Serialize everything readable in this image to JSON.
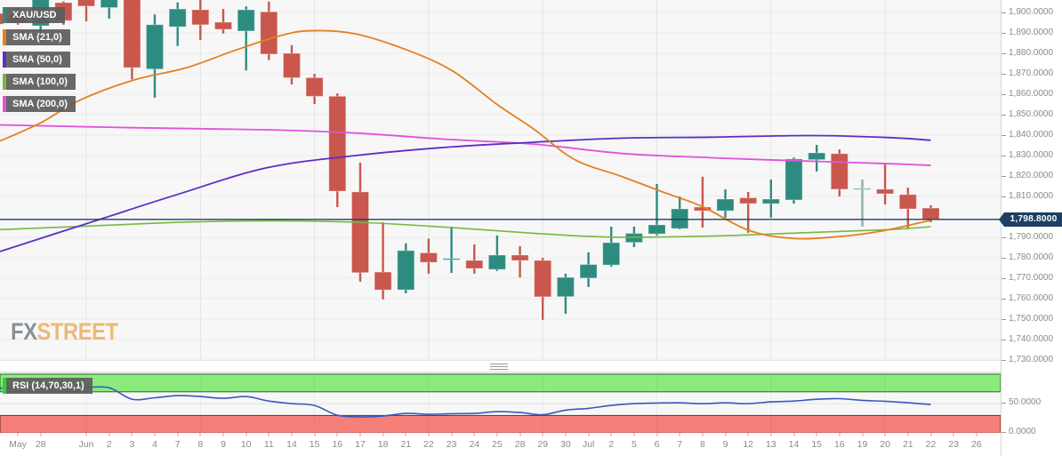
{
  "logo": {
    "fx": "FX",
    "street": "STREET"
  },
  "legend": {
    "items": [
      {
        "label": "XAU/USD",
        "color": "#2d8c7f"
      },
      {
        "label": "SMA (21,0)",
        "color": "#e5801f"
      },
      {
        "label": "SMA (50,0)",
        "color": "#5f2dc8"
      },
      {
        "label": "SMA (100,0)",
        "color": "#76b83f"
      },
      {
        "label": "SMA (200,0)",
        "color": "#e153d9"
      }
    ],
    "rsi": {
      "label": "RSI (14,70,30,1)",
      "color": "#2fd32f"
    }
  },
  "price_axis": {
    "ticks": [
      {
        "v": 1900,
        "text": "1,900.0000"
      },
      {
        "v": 1890,
        "text": "1,890.0000"
      },
      {
        "v": 1880,
        "text": "1,880.0000"
      },
      {
        "v": 1870,
        "text": "1,870.0000"
      },
      {
        "v": 1860,
        "text": "1,860.0000"
      },
      {
        "v": 1850,
        "text": "1,850.0000"
      },
      {
        "v": 1840,
        "text": "1,840.0000"
      },
      {
        "v": 1830,
        "text": "1,830.0000"
      },
      {
        "v": 1820,
        "text": "1,820.0000"
      },
      {
        "v": 1810,
        "text": "1,810.0000"
      },
      {
        "v": 1790,
        "text": "1,790.0000"
      },
      {
        "v": 1780,
        "text": "1,780.0000"
      },
      {
        "v": 1770,
        "text": "1,770.0000"
      },
      {
        "v": 1760,
        "text": "1,760.0000"
      },
      {
        "v": 1750,
        "text": "1,750.0000"
      },
      {
        "v": 1740,
        "text": "1,740.0000"
      },
      {
        "v": 1730,
        "text": "1,730.0000"
      }
    ],
    "current": {
      "value": 1798.8,
      "text": "1,798.8000"
    }
  },
  "rsi_axis": {
    "ticks": [
      {
        "v": 50,
        "text": "50.0000"
      },
      {
        "v": 0,
        "text": "0.0000"
      }
    ]
  },
  "chart_data": {
    "type": "candlestick",
    "symbol": "XAU/USD",
    "colors": {
      "up": "#2d8c7f",
      "down": "#c9574d",
      "pale_doji": "#8fb0a8",
      "current_price_line": "#1c3f63",
      "grid": "#ebebeb",
      "vgrid": "#e5e5e5",
      "rsi_line": "#3a57c0",
      "overbought_fill": "#8aeb7c",
      "oversold_fill": "#f58079"
    },
    "price_axis_range": {
      "top": 1906.1,
      "bottom": 1729.5,
      "tick_step": 10
    },
    "current_price": 1798.8,
    "candles": [
      {
        "t": "May 26",
        "label": "",
        "o": 1899.5,
        "h": 1900.5,
        "l": 1893.5,
        "c": 1894.3
      },
      {
        "t": "May 27",
        "label": "May",
        "o": 1899.0,
        "h": 1902.0,
        "l": 1894.0,
        "c": 1895.0
      },
      {
        "t": "May 28",
        "label": "28",
        "o": 1893.5,
        "h": 1908.0,
        "l": 1885.7,
        "c": 1906.5
      },
      {
        "t": "May 31",
        "label": "",
        "o": 1904.8,
        "h": 1905.5,
        "l": 1894.0,
        "c": 1896.0
      },
      {
        "t": "Jun 1",
        "label": "Jun",
        "o": 1907.0,
        "h": 1908.0,
        "l": 1895.7,
        "c": 1903.1
      },
      {
        "t": "Jun 2",
        "label": "2",
        "o": 1902.4,
        "h": 1908.0,
        "l": 1897.0,
        "c": 1907.0
      },
      {
        "t": "Jun 3",
        "label": "3",
        "o": 1908.0,
        "h": 1909.0,
        "l": 1867.2,
        "c": 1873.0
      },
      {
        "t": "Jun 4",
        "label": "4",
        "o": 1872.3,
        "h": 1899.0,
        "l": 1858.3,
        "c": 1894.0
      },
      {
        "t": "Jun 7",
        "label": "7",
        "o": 1893.0,
        "h": 1904.9,
        "l": 1883.6,
        "c": 1901.7
      },
      {
        "t": "Jun 8",
        "label": "8",
        "o": 1901.3,
        "h": 1906.1,
        "l": 1886.5,
        "c": 1894.0
      },
      {
        "t": "Jun 9",
        "label": "9",
        "o": 1895.2,
        "h": 1901.7,
        "l": 1889.7,
        "c": 1891.7
      },
      {
        "t": "Jun 10",
        "label": "10",
        "o": 1890.9,
        "h": 1903.0,
        "l": 1871.6,
        "c": 1901.3
      },
      {
        "t": "Jun 11",
        "label": "11",
        "o": 1900.3,
        "h": 1905.3,
        "l": 1876.7,
        "c": 1879.6
      },
      {
        "t": "Jun 14",
        "label": "14",
        "o": 1880.0,
        "h": 1884.0,
        "l": 1864.8,
        "c": 1868.1
      },
      {
        "t": "Jun 15",
        "label": "15",
        "o": 1868.1,
        "h": 1870.0,
        "l": 1855.2,
        "c": 1859.0
      },
      {
        "t": "Jun 16",
        "label": "16",
        "o": 1859.0,
        "h": 1860.4,
        "l": 1804.8,
        "c": 1812.6
      },
      {
        "t": "Jun 17",
        "label": "17",
        "o": 1812.2,
        "h": 1826.5,
        "l": 1768.3,
        "c": 1772.7
      },
      {
        "t": "Jun 18",
        "label": "18",
        "o": 1773.0,
        "h": 1797.4,
        "l": 1759.7,
        "c": 1764.3
      },
      {
        "t": "Jun 21",
        "label": "21",
        "o": 1764.3,
        "h": 1787.1,
        "l": 1762.6,
        "c": 1783.5
      },
      {
        "t": "Jun 22",
        "label": "22",
        "o": 1782.4,
        "h": 1789.4,
        "l": 1772.2,
        "c": 1777.8
      },
      {
        "t": "Jun 23",
        "label": "23",
        "o": 1779.0,
        "h": 1795.2,
        "l": 1772.6,
        "c": 1779.6
      },
      {
        "t": "Jun 24",
        "label": "24",
        "o": 1778.7,
        "h": 1786.5,
        "l": 1772.2,
        "c": 1774.8
      },
      {
        "t": "Jun 25",
        "label": "25",
        "o": 1774.3,
        "h": 1790.9,
        "l": 1773.5,
        "c": 1781.3
      },
      {
        "t": "Jun 28",
        "label": "28",
        "o": 1781.3,
        "h": 1785.7,
        "l": 1770.4,
        "c": 1778.7
      },
      {
        "t": "Jun 29",
        "label": "29",
        "o": 1778.7,
        "h": 1780.0,
        "l": 1749.6,
        "c": 1760.9
      },
      {
        "t": "Jun 30",
        "label": "30",
        "o": 1761.0,
        "h": 1772.2,
        "l": 1752.6,
        "c": 1770.4
      },
      {
        "t": "Jul 1",
        "label": "Jul",
        "o": 1770.1,
        "h": 1782.6,
        "l": 1765.7,
        "c": 1776.7
      },
      {
        "t": "Jul 2",
        "label": "2",
        "o": 1776.5,
        "h": 1795.2,
        "l": 1775.6,
        "c": 1787.4
      },
      {
        "t": "Jul 5",
        "label": "5",
        "o": 1787.5,
        "h": 1795.2,
        "l": 1785.2,
        "c": 1791.9
      },
      {
        "t": "Jul 6",
        "label": "6",
        "o": 1791.7,
        "h": 1816.1,
        "l": 1790.9,
        "c": 1796.1
      },
      {
        "t": "Jul 7",
        "label": "7",
        "o": 1794.3,
        "h": 1810.0,
        "l": 1793.9,
        "c": 1803.9
      },
      {
        "t": "Jul 8",
        "label": "8",
        "o": 1804.8,
        "h": 1819.6,
        "l": 1794.8,
        "c": 1803.0
      },
      {
        "t": "Jul 9",
        "label": "9",
        "o": 1803.0,
        "h": 1813.5,
        "l": 1799.6,
        "c": 1808.7
      },
      {
        "t": "Jul 12",
        "label": "12",
        "o": 1809.3,
        "h": 1812.2,
        "l": 1792.2,
        "c": 1806.5
      },
      {
        "t": "Jul 13",
        "label": "13",
        "o": 1806.5,
        "h": 1818.3,
        "l": 1799.6,
        "c": 1808.7
      },
      {
        "t": "Jul 14",
        "label": "14",
        "o": 1808.3,
        "h": 1829.1,
        "l": 1806.5,
        "c": 1828.3
      },
      {
        "t": "Jul 15",
        "label": "15",
        "o": 1828.0,
        "h": 1835.2,
        "l": 1822.2,
        "c": 1831.3
      },
      {
        "t": "Jul 16",
        "label": "16",
        "o": 1830.9,
        "h": 1833.0,
        "l": 1810.0,
        "c": 1813.5
      },
      {
        "t": "Jul 19",
        "label": "19",
        "o": 1814.0,
        "h": 1818.3,
        "l": 1795.2,
        "c": 1813.3,
        "pale": true
      },
      {
        "t": "Jul 20",
        "label": "20",
        "o": 1813.5,
        "h": 1825.7,
        "l": 1806.1,
        "c": 1811.3
      },
      {
        "t": "Jul 21",
        "label": "21",
        "o": 1810.9,
        "h": 1814.3,
        "l": 1794.3,
        "c": 1803.9
      },
      {
        "t": "Jul 22",
        "label": "22",
        "o": 1804.3,
        "h": 1805.7,
        "l": 1797.4,
        "c": 1798.8
      }
    ],
    "future_labels": [
      "23",
      "26"
    ],
    "week_grid_indices": [
      4,
      9,
      14,
      19,
      24,
      29,
      34,
      39
    ],
    "overlays": [
      {
        "name": "SMA (21,0)",
        "color": "#e5801f",
        "width": 1.8,
        "points": [
          [
            0.2,
            1837
          ],
          [
            2,
            1846
          ],
          [
            3.7,
            1857
          ],
          [
            6.1,
            1867
          ],
          [
            8.4,
            1873
          ],
          [
            10.4,
            1881
          ],
          [
            12.3,
            1888
          ],
          [
            13.7,
            1891
          ],
          [
            15.8,
            1889.5
          ],
          [
            18.2,
            1881
          ],
          [
            20.1,
            1871
          ],
          [
            22,
            1855
          ],
          [
            23.6,
            1843
          ],
          [
            25.4,
            1828
          ],
          [
            27.4,
            1820
          ],
          [
            29.3,
            1812
          ],
          [
            31,
            1805
          ],
          [
            33,
            1793.5
          ],
          [
            34.9,
            1789.5
          ],
          [
            36.9,
            1790.3
          ],
          [
            38.8,
            1793
          ],
          [
            41,
            1798.3
          ]
        ]
      },
      {
        "name": "SMA (50,0)",
        "color": "#5f2dc8",
        "width": 1.8,
        "points": [
          [
            0.2,
            1783
          ],
          [
            4.1,
            1797
          ],
          [
            8,
            1811
          ],
          [
            11.9,
            1824
          ],
          [
            15.8,
            1830
          ],
          [
            19.7,
            1834
          ],
          [
            23.6,
            1836.5
          ],
          [
            27.5,
            1838.5
          ],
          [
            31.4,
            1839
          ],
          [
            35.7,
            1839.8
          ],
          [
            39.2,
            1838.8
          ],
          [
            41,
            1837.5
          ]
        ]
      },
      {
        "name": "SMA (100,0)",
        "color": "#76b83f",
        "width": 1.6,
        "points": [
          [
            0.2,
            1793.8
          ],
          [
            4.1,
            1795.5
          ],
          [
            8,
            1797.3
          ],
          [
            11.9,
            1798.1
          ],
          [
            15.8,
            1797.4
          ],
          [
            19.7,
            1795
          ],
          [
            23.6,
            1792
          ],
          [
            27.1,
            1790.1
          ],
          [
            31.4,
            1790.6
          ],
          [
            35.3,
            1792.2
          ],
          [
            39.2,
            1793.8
          ],
          [
            41,
            1795.2
          ]
        ]
      },
      {
        "name": "SMA (200,0)",
        "color": "#e153d9",
        "width": 1.8,
        "points": [
          [
            0.2,
            1845
          ],
          [
            6.1,
            1843.6
          ],
          [
            11.9,
            1842.6
          ],
          [
            15.8,
            1841
          ],
          [
            19.7,
            1838
          ],
          [
            23.6,
            1835.6
          ],
          [
            27.5,
            1831
          ],
          [
            31.4,
            1828.9
          ],
          [
            35.3,
            1827.4
          ],
          [
            39.2,
            1826
          ],
          [
            41,
            1825.2
          ]
        ]
      }
    ],
    "rsi": {
      "name": "RSI (14,70,30,1)",
      "range": [
        0,
        100
      ],
      "overbought": 70,
      "oversold": 30,
      "values": [
        76,
        77,
        78,
        78,
        77.5,
        77,
        57.5,
        60,
        63.5,
        62,
        59,
        62,
        54.4,
        50,
        47,
        30.4,
        27.5,
        29,
        33.4,
        32,
        33,
        33.4,
        36.4,
        35,
        31.2,
        39,
        42,
        47,
        50,
        51,
        51.4,
        50,
        51.4,
        50,
        53,
        54.4,
        57.4,
        58.5,
        55.5,
        54,
        51.5,
        48.5
      ]
    }
  }
}
